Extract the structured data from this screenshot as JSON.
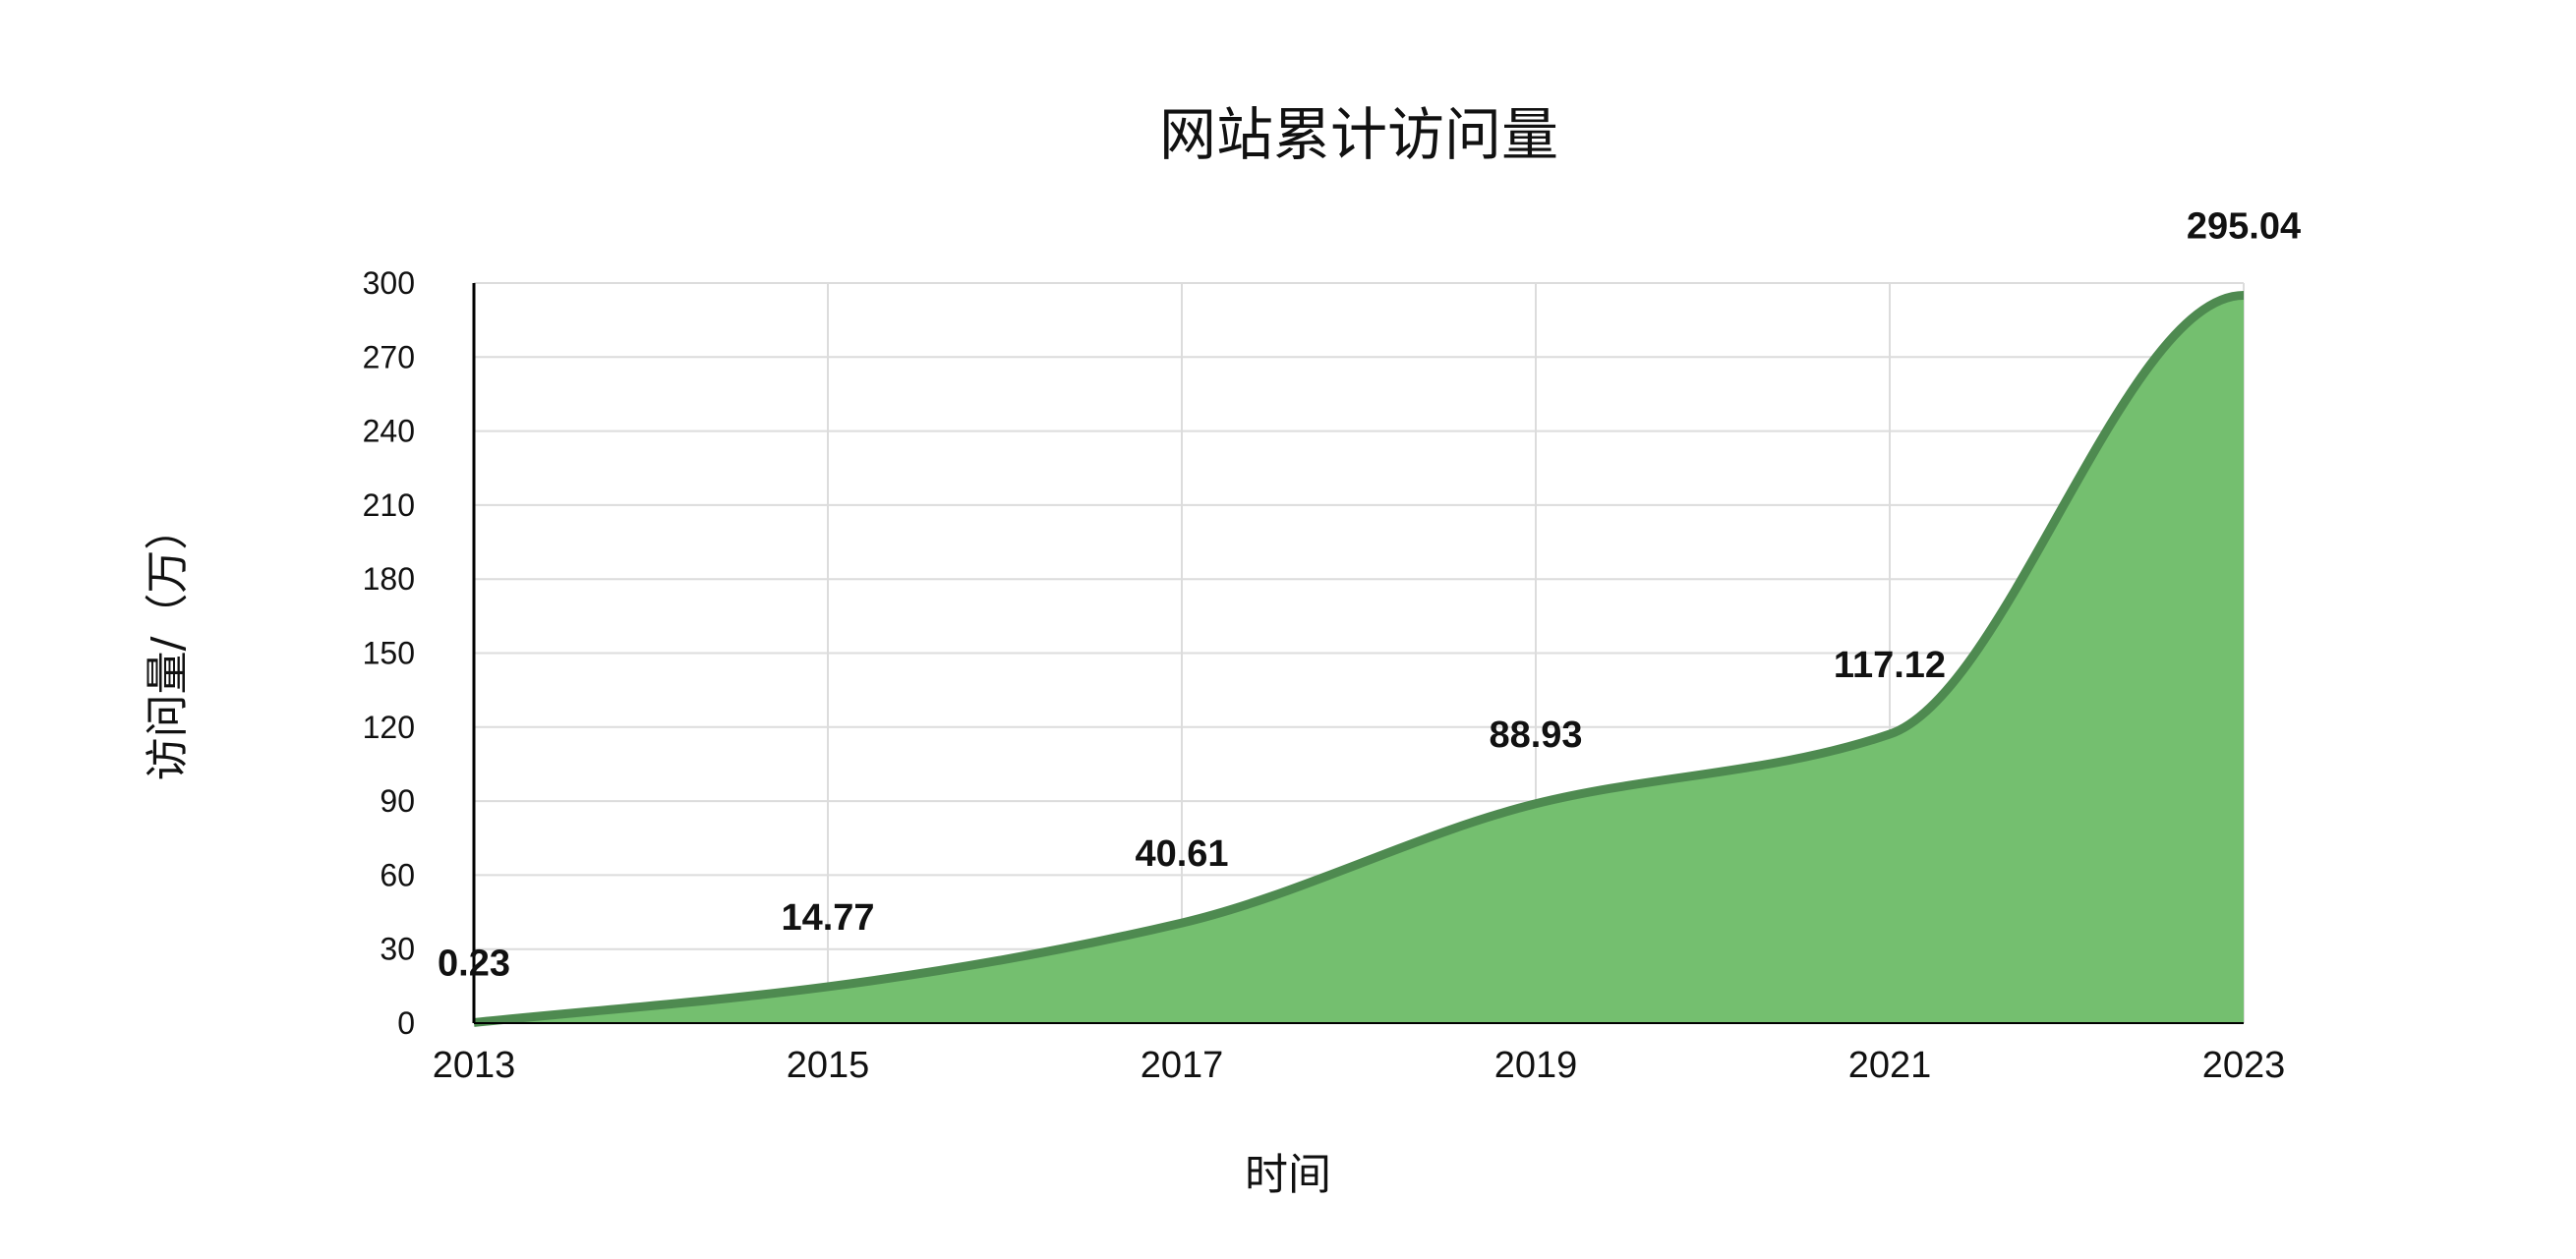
{
  "chart_data": {
    "type": "area",
    "title": "网站累计访问量",
    "xlabel": "时间",
    "ylabel": "访问量/（万）",
    "x": [
      "2013",
      "2015",
      "2017",
      "2019",
      "2021",
      "2023"
    ],
    "series": [
      {
        "values": [
          0.23,
          14.77,
          40.61,
          88.93,
          117.12,
          295.04
        ]
      }
    ],
    "data_labels": [
      "0.23",
      "14.77",
      "40.61",
      "88.93",
      "117.12",
      "295.04"
    ],
    "ylim": [
      0,
      300
    ],
    "yticks": [
      "0",
      "30",
      "60",
      "90",
      "120",
      "150",
      "180",
      "210",
      "240",
      "270",
      "300"
    ],
    "grid": true,
    "colors": {
      "fill": "#74bf6f",
      "line": "#4e8a50",
      "grid": "#dcdcdc",
      "axis": "#000000"
    }
  }
}
